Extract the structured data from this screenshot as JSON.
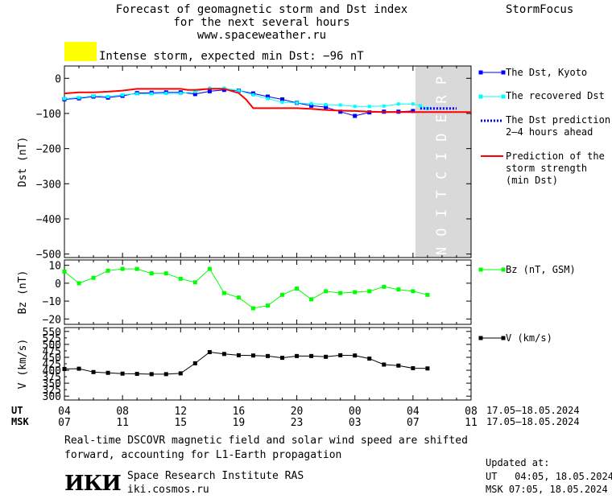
{
  "header": {
    "title_lines": [
      "Forecast of geomagnetic storm and Dst index",
      "for the next several hours",
      "www.spaceweather.ru"
    ],
    "brand": "StormFocus",
    "storm_text": "Intense storm, expected min Dst: −96 nT",
    "storm_color": "#ffff00"
  },
  "legend": {
    "dst_kyoto": "The Dst, Kyoto",
    "recovered": "The recovered Dst",
    "prediction_line1": "The Dst prediction",
    "prediction_line2": "2–4 hours ahead",
    "strength_line1": "Prediction of the",
    "strength_line2": "storm strength",
    "strength_line3": "(min Dst)",
    "bz": "Bz (nT, GSM)",
    "v": "V (km/s)"
  },
  "axes": {
    "ut_label": "UT",
    "msk_label": "MSK",
    "ut_ticks": [
      "04",
      "08",
      "12",
      "16",
      "20",
      "00",
      "04",
      "08"
    ],
    "msk_ticks": [
      "07",
      "11",
      "15",
      "19",
      "23",
      "03",
      "07",
      "11"
    ],
    "ut_range": "17.05–18.05.2024",
    "msk_range": "17.05–18.05.2024"
  },
  "footer": {
    "note_line1": "Real-time DSCOVR magnetic field and solar wind speed are shifted",
    "note_line2": "forward, accounting for L1-Earth propagation",
    "logo": "ИКИ",
    "institute": "Space Research Institute RAS",
    "site": "iki.cosmos.ru",
    "updated_label": "Updated at:",
    "updated_ut": "UT   04:05, 18.05.2024",
    "updated_msk": "MSK 07:05, 18.05.2024"
  },
  "colors": {
    "dst": "#0000ff",
    "recovered": "#00ffff",
    "prediction": "#0000ff",
    "strength": "#ff0000",
    "bz": "#00ff00",
    "v": "#000000",
    "prediction_zone": "#d9d9d9"
  },
  "chart_data": [
    {
      "type": "line",
      "ylabel": "Dst (nT)",
      "ylim": [
        -510,
        35
      ],
      "yticks": [
        0,
        -100,
        -200,
        -300,
        -400,
        -500
      ],
      "prediction_label": "PREDICTION",
      "prediction_zone_hours": [
        24,
        28
      ],
      "series": [
        {
          "name": "The Dst, Kyoto",
          "x": [
            0,
            1,
            2,
            3,
            4,
            5,
            6,
            7,
            8,
            9,
            10,
            11,
            12,
            13,
            14,
            15,
            16,
            17,
            18,
            19,
            20,
            21,
            22,
            23,
            24
          ],
          "values": [
            -60,
            -57,
            -52,
            -55,
            -50,
            -42,
            -41,
            -40,
            -40,
            -45,
            -37,
            -33,
            -35,
            -43,
            -52,
            -60,
            -70,
            -78,
            -82,
            -95,
            -107,
            -97,
            -95,
            -95,
            -93
          ]
        },
        {
          "name": "The recovered Dst",
          "x": [
            0,
            1,
            2,
            3,
            4,
            5,
            6,
            7,
            8,
            9,
            10,
            11,
            12,
            13,
            14,
            15,
            16,
            17,
            18,
            19,
            20,
            21,
            22,
            23,
            24,
            24.5,
            25
          ],
          "values": [
            -58,
            -55,
            -50,
            -52,
            -47,
            -44,
            -44,
            -43,
            -43,
            -38,
            -28,
            -28,
            -35,
            -47,
            -58,
            -68,
            -70,
            -72,
            -75,
            -76,
            -80,
            -80,
            -79,
            -73,
            -73,
            -78,
            -86
          ]
        },
        {
          "name": "The Dst prediction 2–4 hours ahead",
          "x": [
            24.5,
            25,
            26,
            27
          ],
          "values": [
            -86,
            -86,
            -86,
            -86
          ]
        },
        {
          "name": "Prediction of the storm strength (min Dst)",
          "x": [
            0,
            1,
            2,
            3,
            4,
            5,
            6,
            7,
            8,
            8.5,
            9,
            10,
            11,
            12,
            12.5,
            13,
            14,
            15,
            16,
            17,
            18,
            19,
            20,
            21,
            22,
            23,
            24,
            25,
            26,
            27,
            28
          ],
          "values": [
            -43,
            -40,
            -40,
            -38,
            -35,
            -30,
            -30,
            -30,
            -30,
            -33,
            -33,
            -30,
            -30,
            -42,
            -60,
            -85,
            -85,
            -85,
            -85,
            -87,
            -90,
            -92,
            -93,
            -95,
            -96,
            -96,
            -96,
            -96,
            -96,
            -96,
            -96
          ]
        }
      ]
    },
    {
      "type": "line",
      "ylabel": "Bz (nT)",
      "ylim": [
        -23,
        13
      ],
      "yticks": [
        10,
        0,
        -10,
        -20
      ],
      "series": [
        {
          "name": "Bz (nT, GSM)",
          "x": [
            0,
            1,
            2,
            3,
            4,
            5,
            6,
            7,
            8,
            9,
            10,
            11,
            12,
            13,
            14,
            15,
            16,
            17,
            18,
            19,
            20,
            21,
            22,
            23,
            24,
            25
          ],
          "values": [
            6.5,
            0,
            3,
            7,
            8,
            8,
            5.5,
            5.5,
            2.5,
            0.5,
            8,
            -5.5,
            -8,
            -14,
            -12.5,
            -6.5,
            -3,
            -9,
            -4.5,
            -5.5,
            -5,
            -4.5,
            -2,
            -3.5,
            -4.5,
            -6.5
          ]
        }
      ]
    },
    {
      "type": "line",
      "ylabel": "V (km/s)",
      "ylim": [
        285,
        565
      ],
      "yticks": [
        550,
        500,
        450,
        400,
        350,
        300
      ],
      "yticks_minor": [
        525,
        475,
        425,
        375,
        325
      ],
      "series": [
        {
          "name": "V (km/s)",
          "x": [
            0,
            1,
            2,
            3,
            4,
            5,
            6,
            7,
            8,
            9,
            10,
            11,
            12,
            13,
            14,
            15,
            16,
            17,
            18,
            19,
            20,
            21,
            22,
            23,
            24,
            25
          ],
          "values": [
            405,
            406,
            393,
            390,
            387,
            386,
            385,
            385,
            388,
            427,
            470,
            463,
            458,
            457,
            455,
            448,
            455,
            455,
            452,
            458,
            457,
            445,
            422,
            418,
            408,
            407
          ]
        }
      ]
    }
  ]
}
